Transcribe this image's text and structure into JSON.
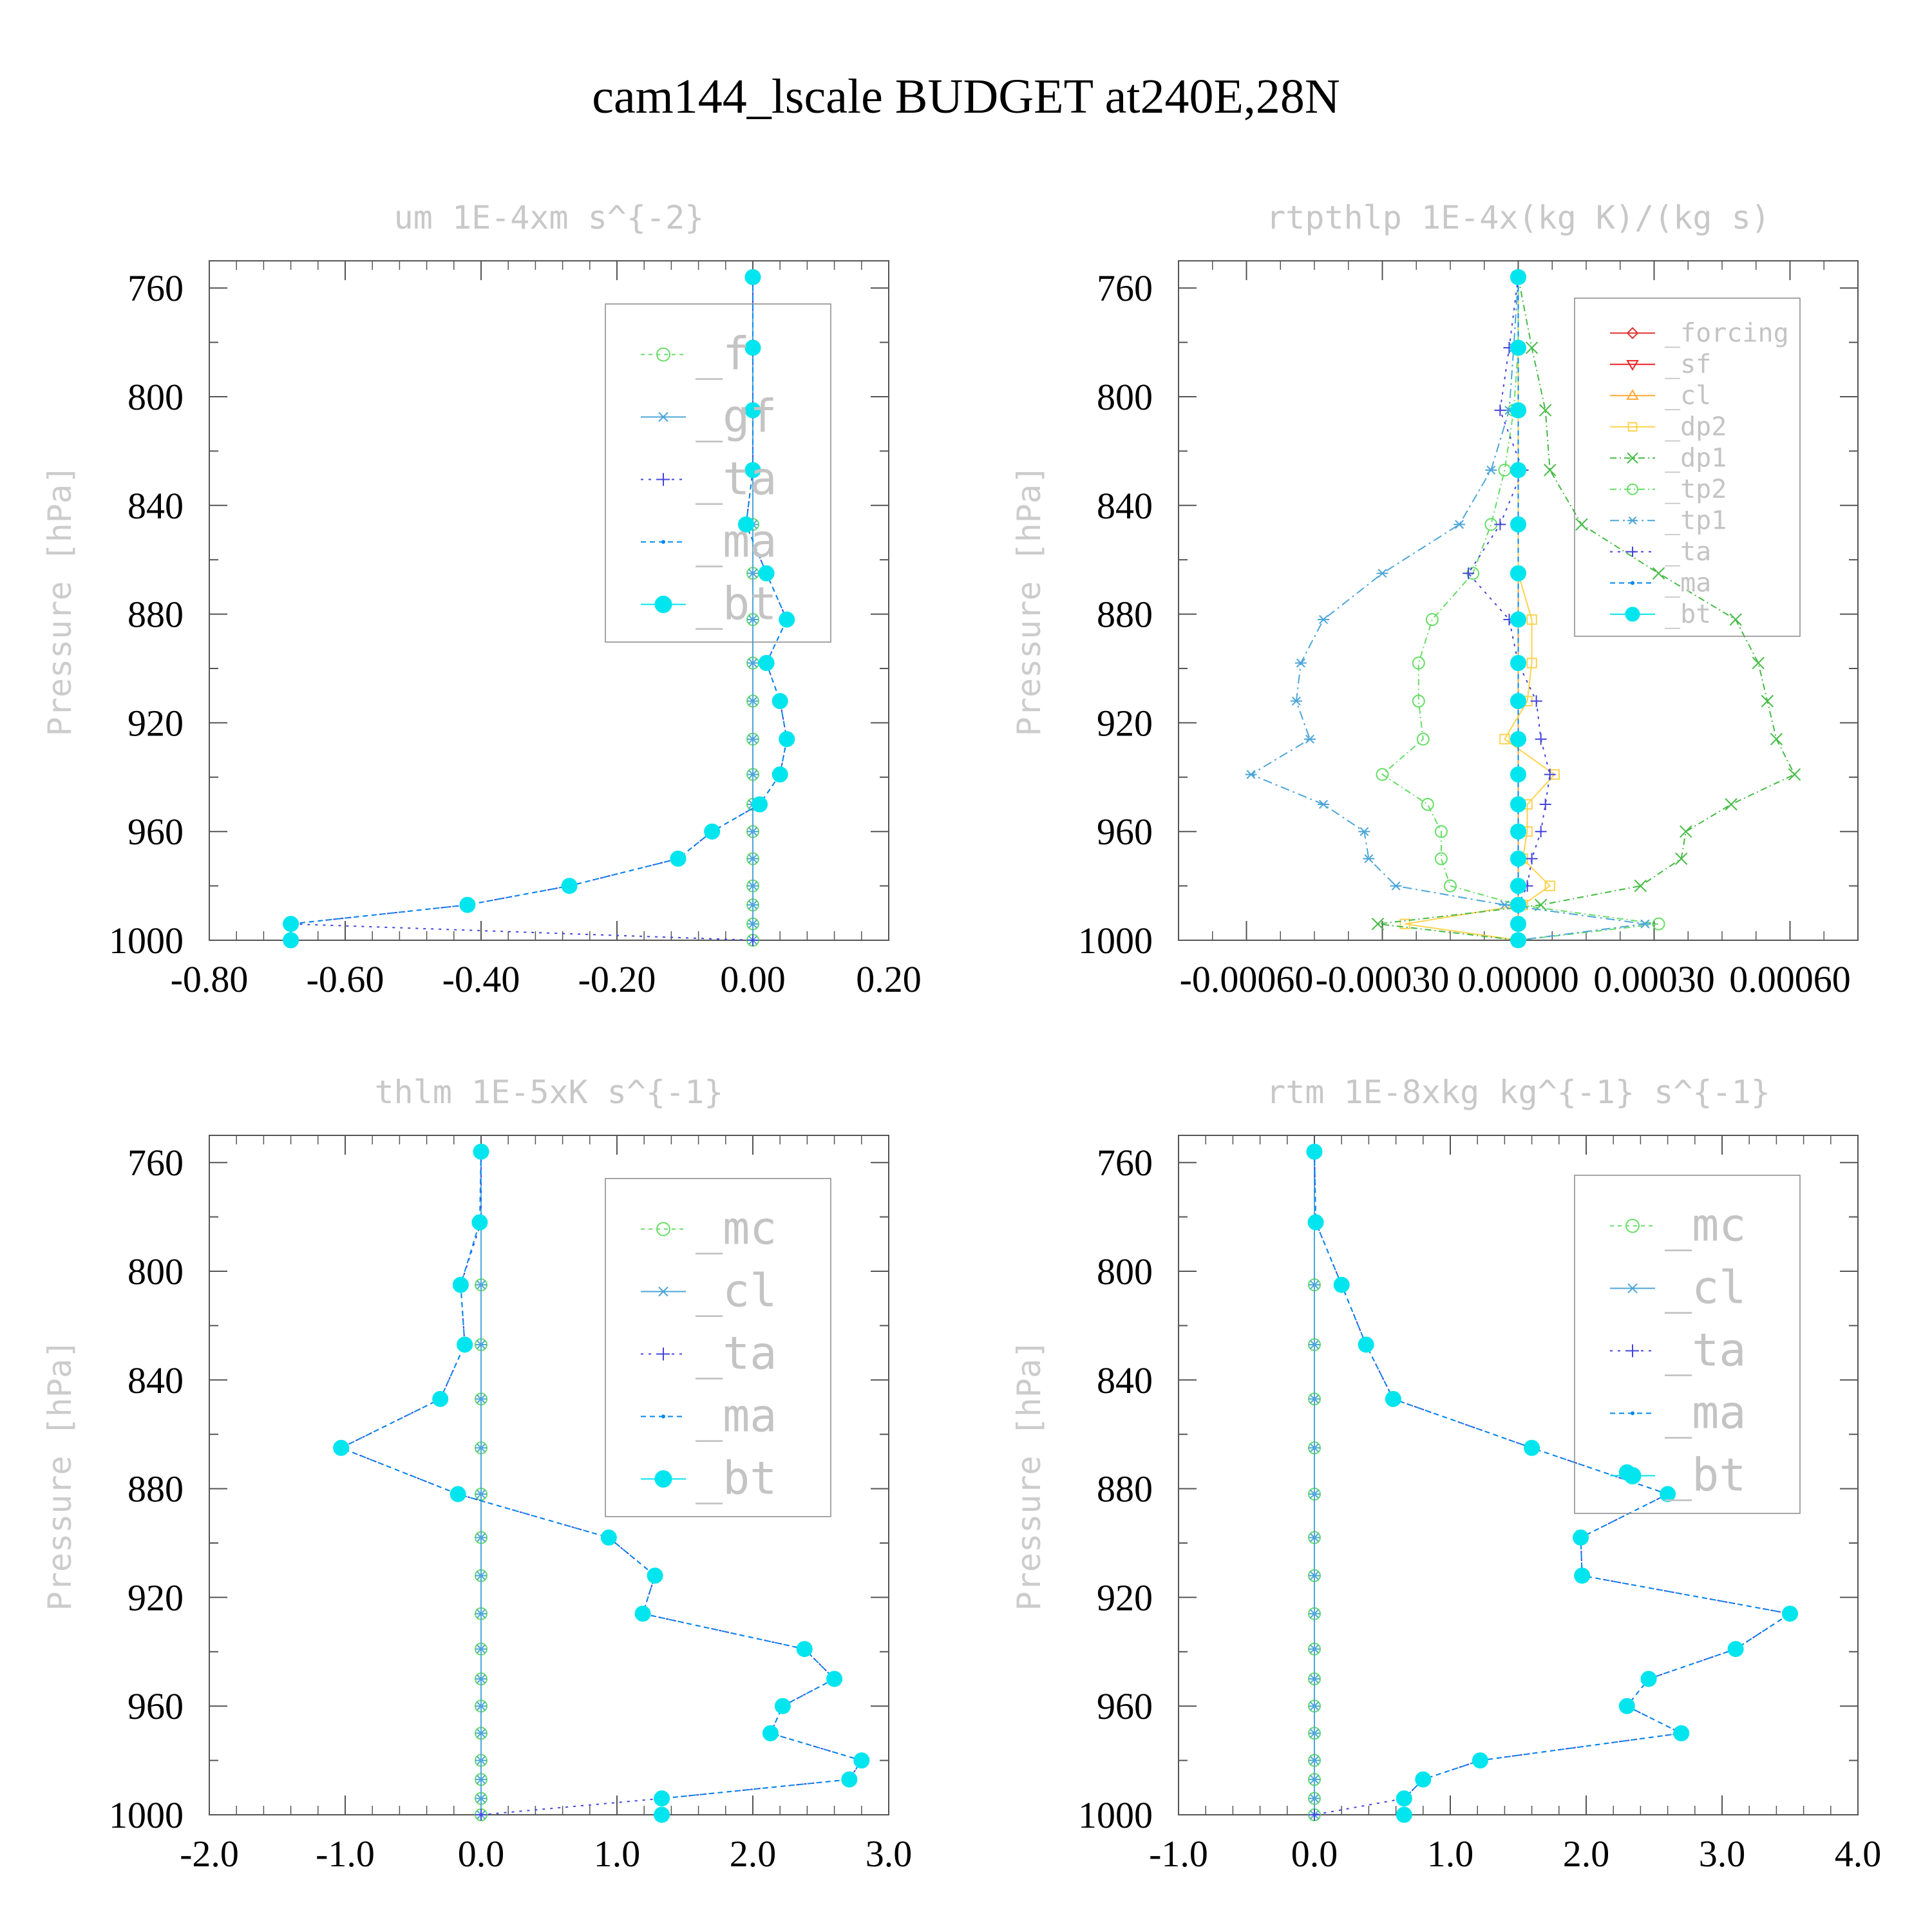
{
  "figure_title": "cam144_lscale  BUDGET at240E,28N",
  "colors": {
    "f": "#66dd66",
    "mc": "#66dd66",
    "tp2": "#66dd66",
    "gf": "#4da6d8",
    "cl_blue": "#4da6d8",
    "tp1": "#4da6d8",
    "ta": "#4444dd",
    "ma": "#0088ee",
    "bt": "#00e5ee",
    "forcing": "#dd3333",
    "sf": "#ee2222",
    "cl_orange": "#ffaa33",
    "dp2": "#ffd24d",
    "dp1": "#44bb44",
    "frame": "#555555"
  },
  "chart_data": [
    {
      "type": "line",
      "title": "um  1E-4xm s^{-2}",
      "ylabel": "Pressure [hPa]",
      "xlim": [
        -0.8,
        0.2
      ],
      "ylim": [
        1000,
        750
      ],
      "xticks": [
        "-0.80",
        "-0.60",
        "-0.40",
        "-0.20",
        "0.00",
        "0.20"
      ],
      "yticks": [
        "760",
        "800",
        "840",
        "880",
        "920",
        "960",
        "1000"
      ],
      "legend": [
        "_f",
        "_gf",
        "_ta",
        "_ma",
        "_bt"
      ],
      "legend_size": 70,
      "pressure": [
        756,
        782,
        805,
        827,
        847,
        865,
        882,
        898,
        912,
        926,
        939,
        950,
        960,
        970,
        980,
        987,
        994,
        1000
      ],
      "series": [
        {
          "name": "_f",
          "color_key": "f",
          "marker": "circle",
          "dash": "6,6",
          "values": [
            0,
            0,
            0,
            0,
            0,
            0,
            0,
            0,
            0,
            0,
            0,
            0,
            0,
            0,
            0,
            0,
            0,
            0
          ]
        },
        {
          "name": "_gf",
          "color_key": "gf",
          "marker": "star",
          "dash": "",
          "values": [
            0,
            0,
            0,
            0,
            0,
            0,
            0,
            0,
            0,
            0,
            0,
            0,
            0,
            0,
            0,
            0,
            0,
            0
          ]
        },
        {
          "name": "_ta",
          "color_key": "ta",
          "marker": "plus",
          "dash": "4,8",
          "values": [
            0,
            0,
            0,
            0,
            -0.01,
            0.02,
            0.05,
            0.02,
            0.04,
            0.05,
            0.04,
            0.01,
            -0.06,
            -0.11,
            -0.27,
            -0.42,
            -0.68,
            0.0
          ]
        },
        {
          "name": "_ma",
          "color_key": "ma",
          "marker": "dot",
          "dash": "8,6",
          "values": [
            0,
            0,
            0,
            0,
            -0.01,
            0.02,
            0.05,
            0.02,
            0.04,
            0.05,
            0.04,
            0.01,
            -0.06,
            -0.11,
            -0.27,
            -0.42,
            -0.68,
            -0.68
          ]
        },
        {
          "name": "_bt",
          "color_key": "bt",
          "marker": "disc",
          "dash": "none",
          "values": [
            0,
            0,
            0,
            0,
            -0.01,
            0.02,
            0.05,
            0.02,
            0.04,
            0.05,
            0.04,
            0.01,
            -0.06,
            -0.11,
            -0.27,
            -0.42,
            -0.68,
            -0.68
          ]
        }
      ]
    },
    {
      "type": "line",
      "title": "rtpthlp  1E-4x(kg K)/(kg s)",
      "ylabel": "Pressure [hPa]",
      "xlim": [
        -0.00075,
        0.00075
      ],
      "ylim": [
        1000,
        750
      ],
      "xticks": [
        "-0.00060",
        "-0.00030",
        "0.00000",
        "0.00030",
        "0.00060"
      ],
      "yticks": [
        "760",
        "800",
        "840",
        "880",
        "920",
        "960",
        "1000"
      ],
      "legend": [
        "_forcing",
        "_sf",
        "_cl",
        "_dp2",
        "_dp1",
        "_tp2",
        "_tp1",
        "_ta",
        "_ma",
        "_bt"
      ],
      "legend_size": 40,
      "pressure": [
        756,
        782,
        805,
        827,
        847,
        865,
        882,
        898,
        912,
        926,
        939,
        950,
        960,
        970,
        980,
        987,
        994,
        1000
      ],
      "series": [
        {
          "name": "_forcing",
          "color_key": "forcing",
          "marker": "diamond",
          "dash": "",
          "values": [
            0,
            0,
            0,
            0,
            0,
            0,
            0,
            0,
            0,
            0,
            0,
            0,
            0,
            0,
            0,
            0,
            0,
            0
          ]
        },
        {
          "name": "_sf",
          "color_key": "sf",
          "marker": "tri-down",
          "dash": "",
          "values": [
            0,
            0,
            0,
            0,
            0,
            0,
            0,
            0,
            0,
            0,
            0,
            0,
            0,
            0,
            0,
            0,
            0,
            0
          ]
        },
        {
          "name": "_cl",
          "color_key": "cl_orange",
          "marker": "tri-up",
          "dash": "",
          "values": [
            0,
            0,
            0,
            0,
            0,
            0,
            0,
            0,
            0,
            0,
            0,
            0,
            0,
            0,
            0,
            0,
            0,
            0
          ]
        },
        {
          "name": "_dp2",
          "color_key": "dp2",
          "marker": "square",
          "dash": "",
          "values": [
            0,
            0,
            0,
            0,
            0,
            0,
            3e-05,
            3e-05,
            2e-05,
            -3e-05,
            8e-05,
            2e-05,
            2e-05,
            1e-05,
            7e-05,
            1e-05,
            -0.00025,
            0
          ]
        },
        {
          "name": "_dp1",
          "color_key": "dp1",
          "marker": "x",
          "dash": "10,5,2,5",
          "values": [
            0,
            3e-05,
            6e-05,
            7e-05,
            0.00014,
            0.00031,
            0.00048,
            0.00053,
            0.00055,
            0.00057,
            0.00061,
            0.00047,
            0.00037,
            0.00036,
            0.00027,
            5e-05,
            -0.00031,
            0
          ]
        },
        {
          "name": "_tp2",
          "color_key": "tp2",
          "marker": "circle",
          "dash": "10,5,2,5",
          "values": [
            0,
            0,
            -1e-05,
            -3e-05,
            -6e-05,
            -0.0001,
            -0.00019,
            -0.00022,
            -0.00022,
            -0.00021,
            -0.0003,
            -0.0002,
            -0.00017,
            -0.00017,
            -0.00015,
            0,
            0.00031,
            0
          ]
        },
        {
          "name": "_tp1",
          "color_key": "tp1",
          "marker": "star",
          "dash": "14,6,3,6",
          "values": [
            0,
            -1e-05,
            -2e-05,
            -6e-05,
            -0.00013,
            -0.0003,
            -0.00043,
            -0.00048,
            -0.00049,
            -0.00046,
            -0.00059,
            -0.00043,
            -0.00034,
            -0.00033,
            -0.00027,
            -3e-05,
            0.00028,
            0
          ]
        },
        {
          "name": "_ta",
          "color_key": "ta",
          "marker": "plus",
          "dash": "4,8",
          "values": [
            0,
            -2e-05,
            -4e-05,
            1e-05,
            -4e-05,
            -0.00011,
            -2e-05,
            0,
            4e-05,
            5e-05,
            7e-05,
            6e-05,
            5e-05,
            3e-05,
            2e-05,
            0,
            0,
            0
          ]
        },
        {
          "name": "_ma",
          "color_key": "ma",
          "marker": "dot",
          "dash": "8,6",
          "values": [
            0,
            0,
            0,
            0,
            0,
            0,
            0,
            0,
            0,
            0,
            0,
            0,
            0,
            0,
            0,
            0,
            0,
            0
          ]
        },
        {
          "name": "_bt",
          "color_key": "bt",
          "marker": "disc",
          "dash": "none",
          "values": [
            0,
            0,
            0,
            0,
            0,
            0,
            0,
            0,
            0,
            0,
            0,
            0,
            0,
            0,
            0,
            0,
            0,
            0
          ]
        }
      ]
    },
    {
      "type": "line",
      "title": "thlm  1E-5xK s^{-1}",
      "ylabel": "Pressure [hPa]",
      "xlim": [
        -2.0,
        3.0
      ],
      "ylim": [
        1000,
        750
      ],
      "xticks": [
        "-2.0",
        "-1.0",
        "0.0",
        "1.0",
        "2.0",
        "3.0"
      ],
      "yticks": [
        "760",
        "800",
        "840",
        "880",
        "920",
        "960",
        "1000"
      ],
      "legend": [
        "_mc",
        "_cl",
        "_ta",
        "_ma",
        "_bt"
      ],
      "legend_size": 70,
      "pressure": [
        756,
        782,
        805,
        827,
        847,
        865,
        882,
        898,
        912,
        926,
        939,
        950,
        960,
        970,
        980,
        987,
        994,
        1000
      ],
      "series": [
        {
          "name": "_mc",
          "color_key": "mc",
          "marker": "circle",
          "dash": "6,6",
          "values": [
            0,
            0,
            0,
            0,
            0,
            0,
            0,
            0,
            0,
            0,
            0,
            0,
            0,
            0,
            0,
            0,
            0,
            0
          ]
        },
        {
          "name": "_cl",
          "color_key": "cl_blue",
          "marker": "star",
          "dash": "",
          "values": [
            0,
            0,
            0,
            0,
            0,
            0,
            0,
            0,
            0,
            0,
            0,
            0,
            0,
            0,
            0,
            0,
            0,
            0
          ]
        },
        {
          "name": "_ta",
          "color_key": "ta",
          "marker": "plus",
          "dash": "4,8",
          "values": [
            0,
            0,
            -0.15,
            -0.12,
            -0.3,
            -1.03,
            -0.17,
            0.94,
            1.28,
            1.19,
            2.38,
            2.6,
            2.22,
            2.13,
            2.8,
            2.71,
            1.33,
            0.0
          ]
        },
        {
          "name": "_ma",
          "color_key": "ma",
          "marker": "dot",
          "dash": "8,6",
          "values": [
            0,
            -0.01,
            -0.15,
            -0.12,
            -0.3,
            -1.03,
            -0.17,
            0.94,
            1.28,
            1.19,
            2.38,
            2.6,
            2.22,
            2.13,
            2.8,
            2.71,
            1.33,
            1.33
          ]
        },
        {
          "name": "_bt",
          "color_key": "bt",
          "marker": "disc",
          "dash": "none",
          "values": [
            0,
            -0.01,
            -0.15,
            -0.12,
            -0.3,
            -1.03,
            -0.17,
            0.94,
            1.28,
            1.19,
            2.38,
            2.6,
            2.22,
            2.13,
            2.8,
            2.71,
            1.33,
            1.33
          ]
        }
      ]
    },
    {
      "type": "line",
      "title": "rtm  1E-8xkg kg^{-1} s^{-1}",
      "ylabel": "Pressure [hPa]",
      "xlim": [
        -1.0,
        4.0
      ],
      "ylim": [
        1000,
        750
      ],
      "xticks": [
        "-1.0",
        "0.0",
        "1.0",
        "2.0",
        "3.0",
        "4.0"
      ],
      "yticks": [
        "760",
        "800",
        "840",
        "880",
        "920",
        "960",
        "1000"
      ],
      "legend": [
        "_mc",
        "_cl",
        "_ta",
        "_ma",
        "_bt"
      ],
      "legend_size": 70,
      "pressure": [
        756,
        782,
        805,
        827,
        847,
        865,
        874,
        882,
        898,
        912,
        926,
        939,
        950,
        960,
        970,
        980,
        987,
        994,
        1000
      ],
      "series": [
        {
          "name": "_mc",
          "color_key": "mc",
          "marker": "circle",
          "dash": "6,6",
          "values": [
            0,
            0,
            0,
            0,
            0,
            0,
            null,
            0,
            0,
            0,
            0,
            0,
            0,
            0,
            0,
            0,
            0,
            0,
            0
          ]
        },
        {
          "name": "_cl",
          "color_key": "cl_blue",
          "marker": "star",
          "dash": "",
          "values": [
            0,
            0,
            0,
            0,
            0,
            0,
            null,
            0,
            0,
            0,
            0,
            0,
            0,
            0,
            0,
            0,
            0,
            0,
            0
          ]
        },
        {
          "name": "_ta",
          "color_key": "ta",
          "marker": "plus",
          "dash": "4,8",
          "values": [
            0,
            0.01,
            0.2,
            0.38,
            0.58,
            1.6,
            null,
            2.6,
            1.96,
            1.97,
            3.5,
            3.1,
            2.46,
            2.3,
            2.7,
            1.22,
            0.8,
            0.66,
            0.0
          ]
        },
        {
          "name": "_ma",
          "color_key": "ma",
          "marker": "dot",
          "dash": "8,6",
          "values": [
            0,
            0.01,
            0.2,
            0.38,
            0.58,
            1.6,
            null,
            2.6,
            1.96,
            1.97,
            3.5,
            3.1,
            2.46,
            2.3,
            2.7,
            1.22,
            0.8,
            0.66,
            0.66
          ]
        },
        {
          "name": "_bt",
          "color_key": "bt",
          "marker": "disc",
          "dash": "none",
          "values": [
            0,
            0.01,
            0.2,
            0.38,
            0.58,
            1.6,
            2.3,
            2.6,
            1.96,
            1.97,
            3.5,
            3.1,
            2.46,
            2.3,
            2.7,
            1.22,
            0.8,
            0.66,
            0.66
          ]
        }
      ]
    }
  ]
}
